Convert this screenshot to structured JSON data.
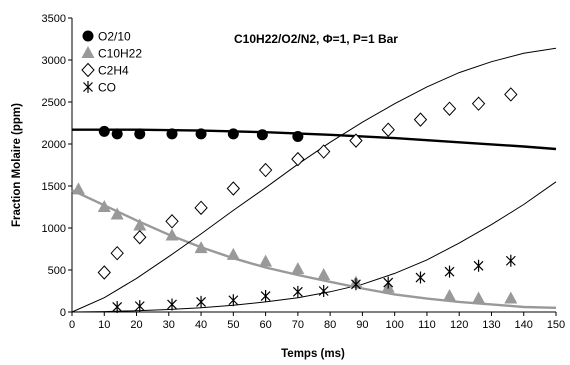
{
  "chart_data": {
    "type": "scatter",
    "title": "C10H22/O2/N2, Φ=1, P=1 Bar",
    "xlabel": "Temps (ms)",
    "ylabel": "Fraction Molaire (ppm)",
    "xlim": [
      0,
      150
    ],
    "ylim": [
      0,
      3500
    ],
    "xticks": [
      "0",
      "10",
      "20",
      "30",
      "40",
      "50",
      "60",
      "70",
      "80",
      "90",
      "100",
      "110",
      "120",
      "130",
      "140",
      "150"
    ],
    "yticks": [
      "0",
      "500",
      "1000",
      "1500",
      "2000",
      "2500",
      "3000",
      "3500"
    ],
    "grid": false,
    "legend_position": "top-left",
    "series": [
      {
        "name": "O2/10",
        "marker": "filled-circle",
        "color": "#000000",
        "points": [
          [
            10,
            2150
          ],
          [
            14,
            2120
          ],
          [
            21,
            2120
          ],
          [
            31,
            2120
          ],
          [
            40,
            2120
          ],
          [
            50,
            2120
          ],
          [
            59,
            2110
          ],
          [
            70,
            2090
          ]
        ]
      },
      {
        "name": "C10H22",
        "marker": "filled-triangle",
        "color": "#999999",
        "points": [
          [
            2,
            1460
          ],
          [
            10,
            1250
          ],
          [
            14,
            1160
          ],
          [
            21,
            1030
          ],
          [
            31,
            910
          ],
          [
            40,
            760
          ],
          [
            50,
            680
          ],
          [
            60,
            600
          ],
          [
            70,
            510
          ],
          [
            78,
            440
          ],
          [
            88,
            350
          ],
          [
            98,
            290
          ],
          [
            117,
            190
          ],
          [
            126,
            160
          ],
          [
            136,
            160
          ]
        ]
      },
      {
        "name": "C2H4",
        "marker": "open-diamond",
        "color": "#000000",
        "points": [
          [
            10,
            470
          ],
          [
            14,
            700
          ],
          [
            21,
            890
          ],
          [
            31,
            1080
          ],
          [
            40,
            1240
          ],
          [
            50,
            1470
          ],
          [
            60,
            1690
          ],
          [
            70,
            1820
          ],
          [
            78,
            1910
          ],
          [
            88,
            2040
          ],
          [
            98,
            2170
          ],
          [
            108,
            2290
          ],
          [
            117,
            2420
          ],
          [
            126,
            2480
          ],
          [
            136,
            2590
          ]
        ]
      },
      {
        "name": "CO",
        "marker": "asterisk",
        "color": "#000000",
        "points": [
          [
            14,
            60
          ],
          [
            21,
            70
          ],
          [
            31,
            90
          ],
          [
            40,
            120
          ],
          [
            50,
            140
          ],
          [
            60,
            190
          ],
          [
            70,
            240
          ],
          [
            78,
            250
          ],
          [
            88,
            330
          ],
          [
            98,
            350
          ],
          [
            108,
            410
          ],
          [
            117,
            480
          ],
          [
            126,
            550
          ],
          [
            136,
            610
          ]
        ]
      }
    ],
    "model_curves": [
      {
        "for": "O2/10",
        "color": "#000000",
        "width": "thick",
        "points": [
          [
            0,
            2170
          ],
          [
            20,
            2170
          ],
          [
            40,
            2160
          ],
          [
            60,
            2140
          ],
          [
            80,
            2110
          ],
          [
            100,
            2070
          ],
          [
            120,
            2020
          ],
          [
            140,
            1970
          ],
          [
            150,
            1940
          ]
        ]
      },
      {
        "for": "C10H22",
        "color": "#999999",
        "width": "thick",
        "points": [
          [
            0,
            1450
          ],
          [
            10,
            1270
          ],
          [
            20,
            1090
          ],
          [
            30,
            920
          ],
          [
            40,
            770
          ],
          [
            50,
            640
          ],
          [
            60,
            530
          ],
          [
            70,
            440
          ],
          [
            80,
            360
          ],
          [
            90,
            280
          ],
          [
            100,
            210
          ],
          [
            110,
            160
          ],
          [
            120,
            120
          ],
          [
            130,
            90
          ],
          [
            140,
            60
          ],
          [
            150,
            50
          ]
        ]
      },
      {
        "for": "C2H4",
        "color": "#000000",
        "width": "thin",
        "points": [
          [
            0,
            0
          ],
          [
            10,
            170
          ],
          [
            20,
            400
          ],
          [
            30,
            660
          ],
          [
            40,
            930
          ],
          [
            50,
            1210
          ],
          [
            60,
            1480
          ],
          [
            70,
            1760
          ],
          [
            80,
            2020
          ],
          [
            90,
            2260
          ],
          [
            100,
            2480
          ],
          [
            110,
            2680
          ],
          [
            120,
            2850
          ],
          [
            130,
            2980
          ],
          [
            140,
            3080
          ],
          [
            150,
            3140
          ]
        ]
      },
      {
        "for": "CO",
        "color": "#000000",
        "width": "thin",
        "points": [
          [
            0,
            0
          ],
          [
            10,
            5
          ],
          [
            20,
            15
          ],
          [
            30,
            30
          ],
          [
            40,
            50
          ],
          [
            50,
            80
          ],
          [
            60,
            120
          ],
          [
            70,
            170
          ],
          [
            80,
            240
          ],
          [
            90,
            330
          ],
          [
            100,
            460
          ],
          [
            110,
            620
          ],
          [
            120,
            820
          ],
          [
            130,
            1040
          ],
          [
            140,
            1280
          ],
          [
            150,
            1550
          ]
        ]
      }
    ]
  }
}
